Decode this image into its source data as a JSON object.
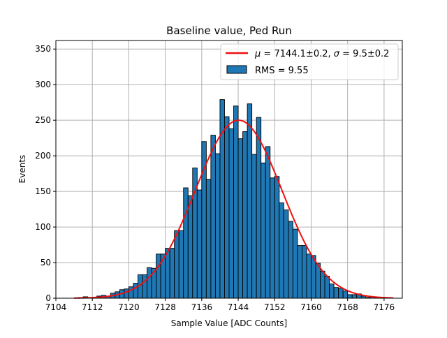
{
  "chart_data": {
    "type": "bar",
    "title": "Baseline value, Ped Run",
    "xlabel": "Sample Value [ADC Counts]",
    "ylabel": "Events",
    "xlim": [
      7104,
      7180
    ],
    "ylim": [
      0,
      362
    ],
    "xticks": [
      7104,
      7112,
      7120,
      7128,
      7136,
      7144,
      7152,
      7160,
      7168,
      7176
    ],
    "yticks": [
      0,
      50,
      100,
      150,
      200,
      250,
      300,
      350
    ],
    "grid": true,
    "legend_position": "top-right",
    "histogram": {
      "name": "RMS = 9.55",
      "bin_width": 1,
      "bin_start": 7108,
      "counts": [
        0,
        1,
        2,
        1,
        1,
        3,
        4,
        3,
        7,
        9,
        12,
        13,
        16,
        21,
        33,
        33,
        43,
        42,
        62,
        62,
        70,
        70,
        95,
        95,
        155,
        144,
        183,
        152,
        220,
        167,
        229,
        203,
        279,
        255,
        238,
        270,
        224,
        234,
        273,
        202,
        254,
        190,
        213,
        169,
        171,
        134,
        124,
        108,
        97,
        74,
        74,
        62,
        60,
        49,
        38,
        31,
        20,
        15,
        14,
        10,
        5,
        5,
        6,
        3,
        1,
        2,
        1,
        1,
        0,
        0
      ]
    },
    "fit": {
      "name": "$\\mu = 7144.1\\pm0.2$, $\\sigma = 9.5\\pm0.2$",
      "legend_parts": {
        "mu_symbol": "μ",
        "mu_value": " = 7144.1±0.2, ",
        "sigma_symbol": "σ",
        "sigma_value": " = 9.5±0.2"
      },
      "mu": 7144.1,
      "sigma": 9.5,
      "amplitude": 250,
      "x_range": [
        7108,
        7178
      ],
      "color": "#ee1111"
    },
    "colors": {
      "bar_fill": "#1f77b4",
      "bar_edge": "#000000",
      "grid": "#b0b0b0"
    }
  }
}
